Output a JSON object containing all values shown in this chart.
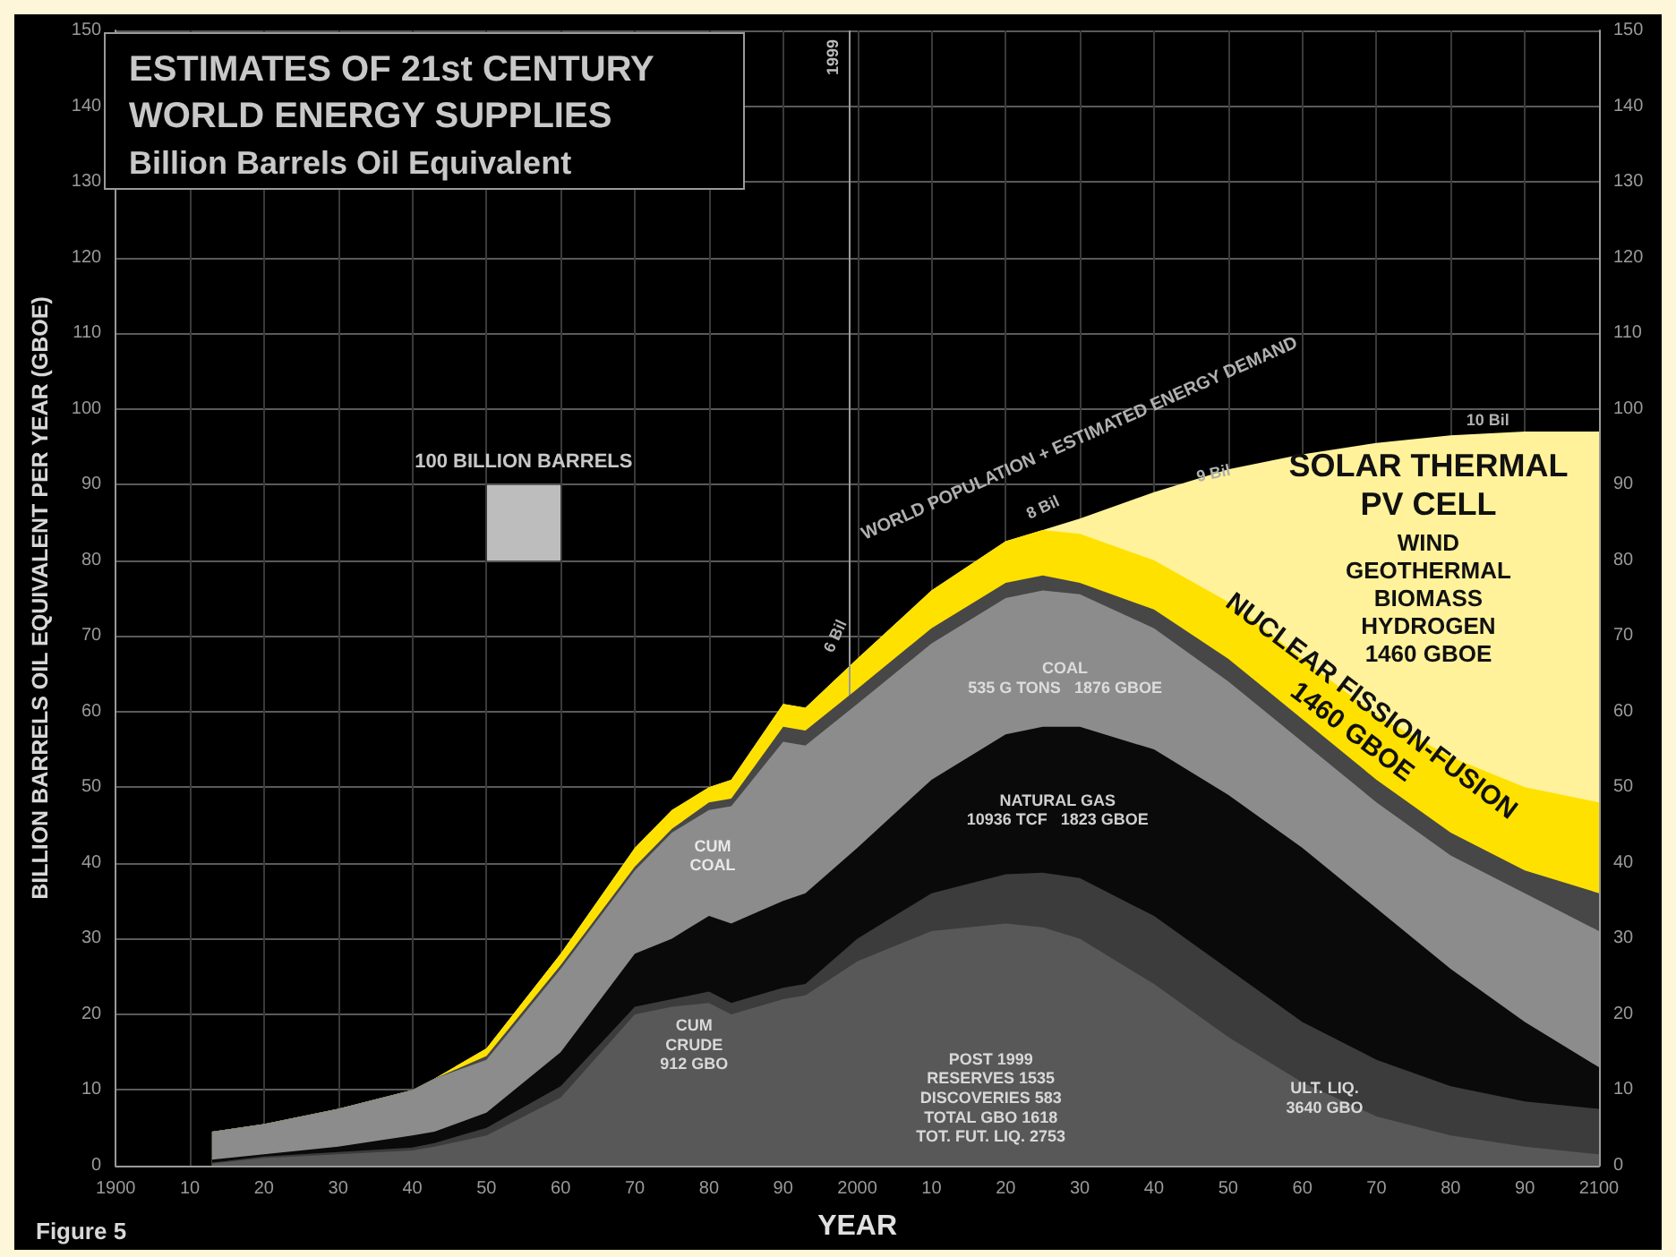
{
  "chart_data": {
    "type": "area",
    "stacked": true,
    "title": "ESTIMATES OF 21st CENTURY WORLD ENERGY SUPPLIES",
    "subtitle": "Billion Barrels Oil Equivalent",
    "xlabel": "YEAR",
    "ylabel": "BILLION BARRELS OIL EQUIVALENT PER YEAR (GBOE)",
    "x": [
      1913,
      1920,
      1930,
      1940,
      1943,
      1950,
      1960,
      1970,
      1975,
      1980,
      1983,
      1990,
      1993,
      2000,
      2010,
      2020,
      2025,
      2030,
      2040,
      2050,
      2060,
      2070,
      2080,
      2090,
      2100
    ],
    "series": [
      {
        "color": "#585858",
        "values": [
          0.3,
          1,
          1.5,
          2,
          2.5,
          4,
          9,
          20,
          21,
          21.5,
          20,
          22,
          22.5,
          27,
          31,
          32,
          31.5,
          30,
          24,
          17,
          11,
          6.5,
          4,
          2.5,
          1.5
        ]
      },
      {
        "color": "#3c3c3c",
        "values": [
          0.1,
          0.2,
          0.3,
          0.4,
          0.5,
          1,
          1.5,
          1,
          1,
          1.5,
          1.5,
          1.5,
          1.5,
          3,
          5,
          6.5,
          7.2,
          8,
          9,
          9,
          8,
          7.5,
          6.5,
          6,
          6
        ]
      },
      {
        "color": "#0a0a0a",
        "values": [
          0.4,
          0.3,
          0.7,
          1.6,
          1.5,
          2,
          4.5,
          7,
          8,
          10,
          10.5,
          11.5,
          12,
          12,
          15,
          18.5,
          19.3,
          20,
          22,
          23,
          23,
          20,
          15.5,
          10.5,
          5.5
        ]
      },
      {
        "color": "#8c8c8c",
        "values": [
          3.7,
          4,
          5,
          6,
          7,
          7,
          11,
          11,
          14,
          14,
          15.5,
          21,
          19.5,
          19,
          18,
          18,
          18,
          17.5,
          16,
          15,
          14,
          14,
          15,
          17,
          18
        ]
      },
      {
        "color": "#474747",
        "values": [
          0,
          0,
          0,
          0,
          0,
          0.5,
          0.5,
          0.5,
          0.5,
          1,
          1,
          2,
          2,
          2,
          2,
          2,
          2,
          1.5,
          2.5,
          3,
          3,
          3,
          3,
          3,
          5
        ]
      },
      {
        "color": "#ffe100",
        "values": [
          0,
          0,
          0,
          0,
          0,
          1,
          1.5,
          2.5,
          2.5,
          2,
          2.5,
          3,
          3,
          4,
          5,
          5.5,
          6,
          6.5,
          6.5,
          7.5,
          8,
          8.5,
          10,
          11,
          12
        ]
      },
      {
        "color": "#fff29a",
        "values": [
          0,
          0,
          0,
          0,
          0,
          0,
          0,
          0,
          0,
          0,
          0,
          0,
          0,
          0,
          0,
          0,
          0,
          2,
          9,
          17.5,
          27,
          36,
          42.5,
          47,
          49
        ]
      }
    ],
    "xlim": [
      1900,
      2100
    ],
    "xticks": [
      {
        "value": 1900,
        "label": "1900"
      },
      {
        "value": 1910,
        "label": "10"
      },
      {
        "value": 1920,
        "label": "20"
      },
      {
        "value": 1930,
        "label": "30"
      },
      {
        "value": 1940,
        "label": "40"
      },
      {
        "value": 1950,
        "label": "50"
      },
      {
        "value": 1960,
        "label": "60"
      },
      {
        "value": 1970,
        "label": "70"
      },
      {
        "value": 1980,
        "label": "80"
      },
      {
        "value": 1990,
        "label": "90"
      },
      {
        "value": 2000,
        "label": "2000"
      },
      {
        "value": 2010,
        "label": "10"
      },
      {
        "value": 2020,
        "label": "20"
      },
      {
        "value": 2030,
        "label": "30"
      },
      {
        "value": 2040,
        "label": "40"
      },
      {
        "value": 2050,
        "label": "50"
      },
      {
        "value": 2060,
        "label": "60"
      },
      {
        "value": 2070,
        "label": "70"
      },
      {
        "value": 2080,
        "label": "80"
      },
      {
        "value": 2090,
        "label": "90"
      },
      {
        "value": 2100,
        "label": "2100"
      }
    ],
    "ylim": [
      0,
      150
    ],
    "yticks": [
      0,
      10,
      20,
      30,
      40,
      50,
      60,
      70,
      80,
      90,
      100,
      110,
      120,
      130,
      140,
      150
    ],
    "y2lim": [
      0,
      150
    ],
    "y2ticks": [
      0,
      10,
      20,
      30,
      40,
      50,
      60,
      70,
      80,
      90,
      100,
      110,
      120,
      130,
      140,
      150
    ],
    "grid": true,
    "ref_lines": [
      {
        "axis": "x",
        "value": 1999,
        "label": "1999",
        "color": "#9a9a9a"
      }
    ],
    "annotations": [
      "100 BILLION BARRELS",
      "WORLD POPULATION + ESTIMATED ENERGY DEMAND",
      "6 Bil",
      "8 Bil",
      "9 Bil",
      "10 Bil",
      "SOLAR THERMAL\nPV CELL",
      "WIND\nGEOTHERMAL\nBIOMASS\nHYDROGEN\n1460 GBOE",
      "NUCLEAR FISSION-FUSION\n1460 GBOE",
      "COAL\n535 G TONS   1876 GBOE",
      "NATURAL GAS\n10936 TCF   1823 GBOE",
      "CUM\nCOAL",
      "CUM\nCRUDE\n912 GBO",
      "POST 1999\nRESERVES 1535\nDISCOVERIES 583\nTOTAL GBO 1618\nTOT. FUT. LIQ. 2753",
      "ULT. LIQ.\n3640 GBO",
      "Figure 5"
    ]
  }
}
